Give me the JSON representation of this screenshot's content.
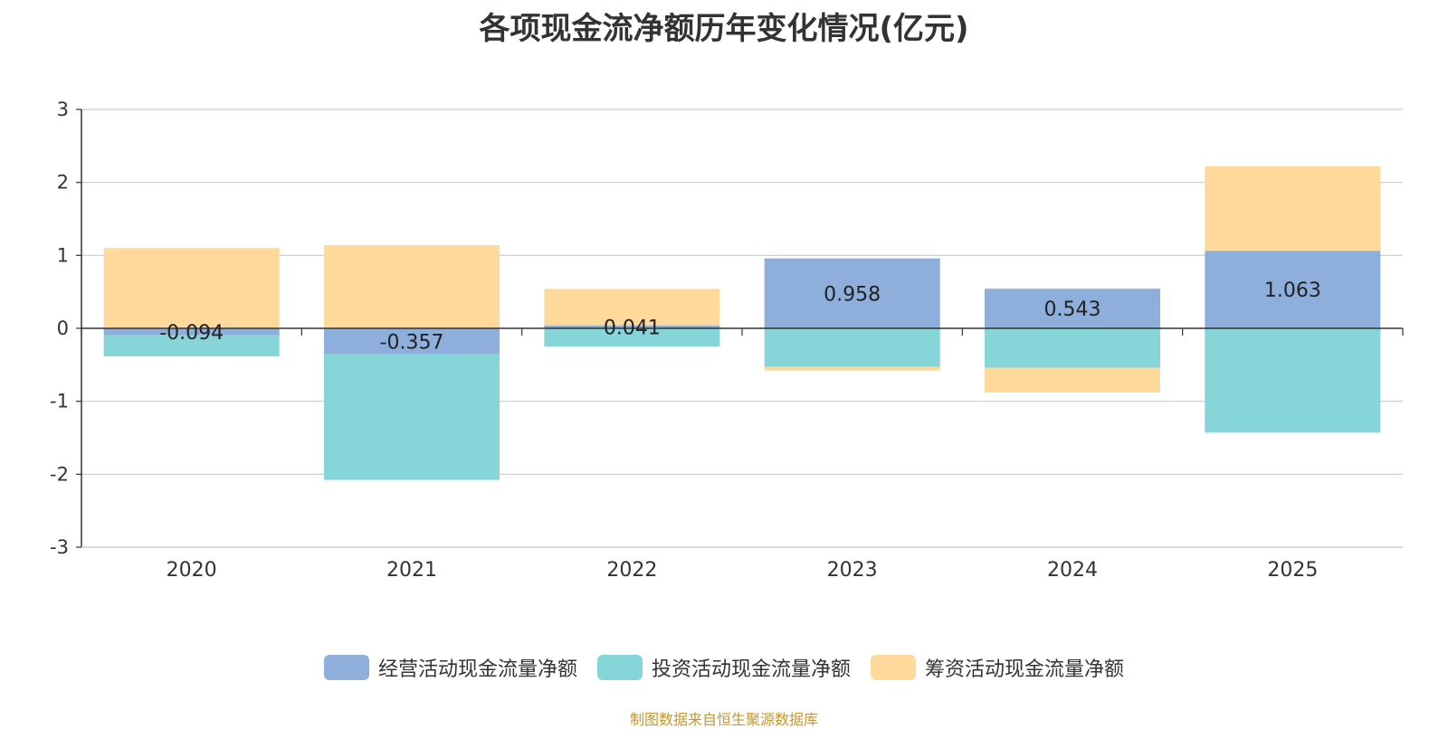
{
  "title": "各项现金流净额历年变化情况(亿元)",
  "source": "制图数据来自恒生聚源数据库",
  "colors": {
    "operating": "#8eaedc",
    "investing": "#86d5d8",
    "financing": "#fdd99b"
  },
  "chart_data": {
    "type": "bar",
    "stacked": true,
    "title": "各项现金流净额历年变化情况(亿元)",
    "categories": [
      "2020",
      "2021",
      "2022",
      "2023",
      "2024",
      "2025"
    ],
    "ylim": [
      -3,
      3
    ],
    "yticks": [
      "3",
      "2",
      "1",
      "0",
      "-1",
      "-2",
      "-3"
    ],
    "legend_position": "bottom",
    "series": [
      {
        "name": "经营活动现金流量净额",
        "key": "operating",
        "values": [
          -0.094,
          -0.357,
          0.041,
          0.958,
          0.543,
          1.063
        ],
        "labels": [
          "-0.094",
          "-0.357",
          "0.041",
          "0.958",
          "0.543",
          "1.063"
        ]
      },
      {
        "name": "投资活动现金流量净额",
        "key": "investing",
        "values": [
          -0.29,
          -1.72,
          -0.25,
          -0.53,
          -0.54,
          -1.43
        ]
      },
      {
        "name": "筹资活动现金流量净额",
        "key": "financing",
        "values": [
          1.1,
          1.14,
          0.5,
          -0.05,
          -0.34,
          1.16
        ]
      }
    ]
  },
  "legend": [
    {
      "label": "经营活动现金流量净额",
      "key": "operating"
    },
    {
      "label": "投资活动现金流量净额",
      "key": "investing"
    },
    {
      "label": "筹资活动现金流量净额",
      "key": "financing"
    }
  ]
}
